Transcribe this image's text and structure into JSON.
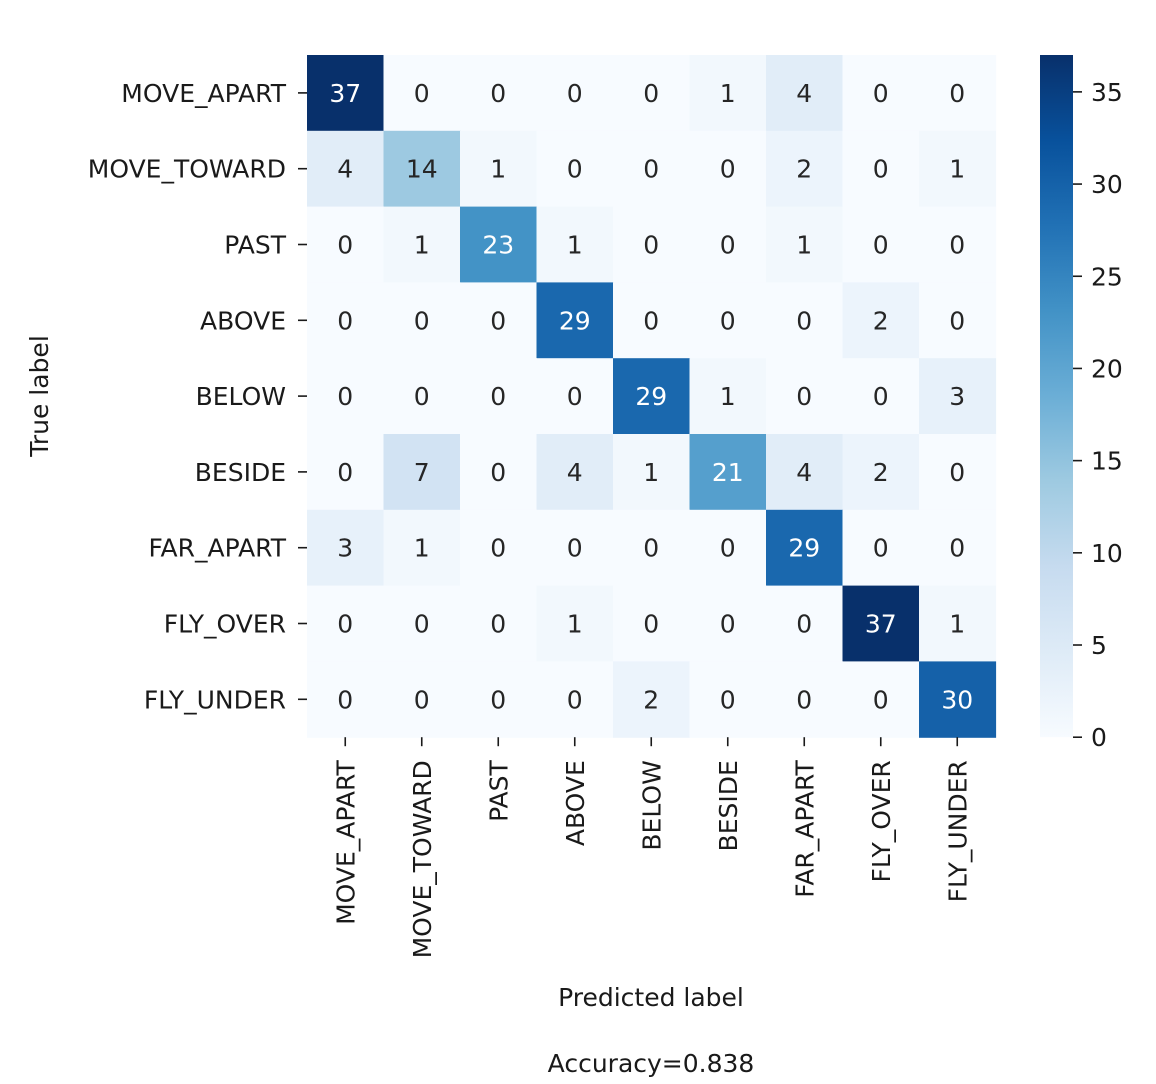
{
  "chart_data": {
    "type": "heatmap",
    "title": "",
    "xlabel": "Predicted label",
    "ylabel": "True label",
    "footer": "Accuracy=0.838",
    "x_categories": [
      "MOVE_APART",
      "MOVE_TOWARD",
      "PAST",
      "ABOVE",
      "BELOW",
      "BESIDE",
      "FAR_APART",
      "FLY_OVER",
      "FLY_UNDER"
    ],
    "y_categories": [
      "MOVE_APART",
      "MOVE_TOWARD",
      "PAST",
      "ABOVE",
      "BELOW",
      "BESIDE",
      "FAR_APART",
      "FLY_OVER",
      "FLY_UNDER"
    ],
    "values": [
      [
        37,
        0,
        0,
        0,
        0,
        1,
        4,
        0,
        0
      ],
      [
        4,
        14,
        1,
        0,
        0,
        0,
        2,
        0,
        1
      ],
      [
        0,
        1,
        23,
        1,
        0,
        0,
        1,
        0,
        0
      ],
      [
        0,
        0,
        0,
        29,
        0,
        0,
        0,
        2,
        0
      ],
      [
        0,
        0,
        0,
        0,
        29,
        1,
        0,
        0,
        3
      ],
      [
        0,
        7,
        0,
        4,
        1,
        21,
        4,
        2,
        0
      ],
      [
        3,
        1,
        0,
        0,
        0,
        0,
        29,
        0,
        0
      ],
      [
        0,
        0,
        0,
        1,
        0,
        0,
        0,
        37,
        1
      ],
      [
        0,
        0,
        0,
        0,
        2,
        0,
        0,
        0,
        30
      ]
    ],
    "colormap": "Blues",
    "colorbar": {
      "min": 0,
      "max": 37,
      "ticks": [
        0,
        5,
        10,
        15,
        20,
        25,
        30,
        35
      ]
    },
    "grid": false,
    "legend": "colorbar-right"
  }
}
